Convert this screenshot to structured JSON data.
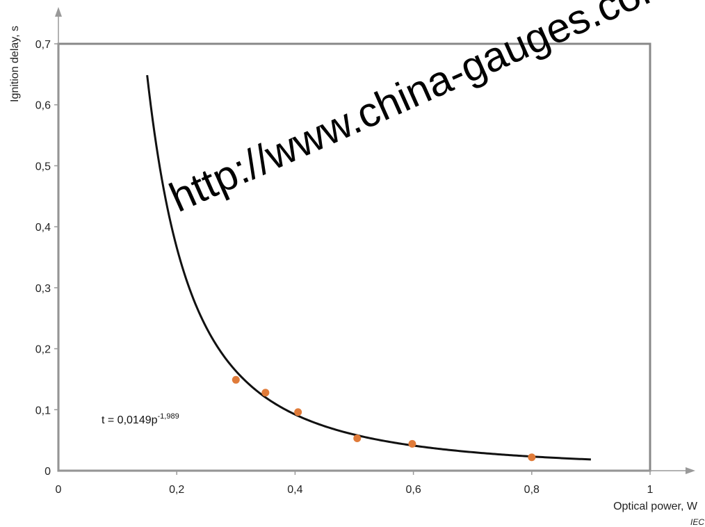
{
  "chart_data": {
    "type": "scatter",
    "xlabel": "Optical power,   W",
    "ylabel": "Ignition delay,   s",
    "xlim": [
      0,
      1
    ],
    "ylim": [
      0,
      0.7
    ],
    "x_ticks": [
      0,
      0.2,
      0.4,
      0.6,
      0.8,
      1
    ],
    "x_tick_labels": [
      "0",
      "0,2",
      "0,4",
      "0,6",
      "0,8",
      "1"
    ],
    "y_ticks": [
      0,
      0.1,
      0.2,
      0.3,
      0.4,
      0.5,
      0.6,
      0.7
    ],
    "y_tick_labels": [
      "0",
      "0,1",
      "0,2",
      "0,3",
      "0,4",
      "0,5",
      "0,6",
      "0,7"
    ],
    "grid": false,
    "series": [
      {
        "kind": "points",
        "color": "#e07b39",
        "x": [
          0.3,
          0.35,
          0.405,
          0.505,
          0.598,
          0.8
        ],
        "y": [
          0.149,
          0.128,
          0.096,
          0.053,
          0.044,
          0.022
        ]
      },
      {
        "kind": "fitted-curve",
        "color": "#111111",
        "equation_base": "t = 0,0149p",
        "equation_exponent": "-1,989",
        "coefficient": 0.0149,
        "exponent": -1.989,
        "x_range": [
          0.15,
          0.9
        ]
      }
    ],
    "source_label": "IEC",
    "watermark": "http://www.china-gauges.com"
  }
}
